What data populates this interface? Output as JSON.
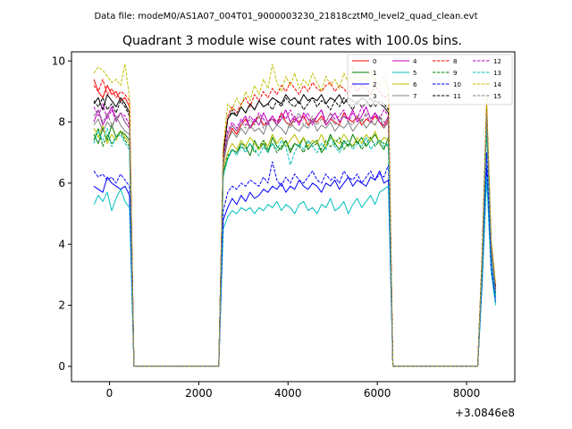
{
  "chart_data": {
    "type": "line",
    "suptitle": "Data file: modeM0/AS1A07_004T01_9000003230_21818cztM0_level2_quad_clean.evt",
    "title": "Quadrant 3 module wise count rates with 100.0s bins.",
    "xlabel": "",
    "ylabel": "",
    "offset_text": "+3.0846e8",
    "xlim": [
      -850,
      9080
    ],
    "ylim": [
      -0.5,
      10.3
    ],
    "xticks": [
      0,
      2000,
      4000,
      6000,
      8000
    ],
    "xtick_labels": [
      "0",
      "2000",
      "4000",
      "6000",
      "8000"
    ],
    "yticks": [
      0,
      2,
      4,
      6,
      8,
      10
    ],
    "ytick_labels": [
      "0",
      "2",
      "4",
      "6",
      "8",
      "10"
    ],
    "grid": false,
    "legend_position": "top-right",
    "segments": [
      {
        "x_start": -350,
        "x_end": 450
      },
      {
        "x_start": 2550,
        "x_end": 6250
      },
      {
        "x_start": 8350,
        "x_end": 8650
      }
    ],
    "series": [
      {
        "name": "0",
        "color": "#ff0000",
        "style": "solid",
        "seg_values": [
          [
            9.4,
            9.0,
            8.8,
            9.2,
            8.9,
            9.0,
            8.7,
            8.8,
            8.5
          ],
          [
            6.8,
            7.4,
            7.8,
            7.6,
            7.9,
            8.1,
            7.8,
            8.0,
            8.2,
            7.9,
            8.0,
            8.1,
            7.9,
            8.3,
            8.0,
            7.9,
            8.1,
            8.0,
            8.2,
            7.9,
            8.1,
            8.0,
            8.2,
            7.9,
            8.1,
            8.0,
            7.9,
            8.3,
            8.1,
            8.0,
            8.2,
            7.9,
            8.1,
            8.0,
            8.2,
            8.0,
            7.8,
            8.1
          ],
          [
            3.5,
            8.3,
            4.0,
            2.6
          ]
        ]
      },
      {
        "name": "1",
        "color": "#008000",
        "style": "solid",
        "seg_values": [
          [
            7.6,
            7.3,
            7.8,
            7.4,
            7.9,
            7.5,
            7.7,
            7.6,
            7.4
          ],
          [
            6.4,
            6.8,
            7.1,
            7.0,
            7.3,
            7.2,
            6.9,
            7.4,
            7.1,
            7.3,
            7.0,
            7.5,
            7.2,
            7.1,
            7.4,
            7.0,
            7.3,
            7.2,
            7.5,
            7.1,
            7.3,
            7.4,
            7.0,
            7.2,
            7.6,
            7.3,
            7.1,
            7.4,
            7.2,
            7.6,
            7.3,
            7.5,
            7.2,
            7.4,
            7.6,
            7.3,
            7.1,
            7.5
          ],
          [
            3.2,
            8.0,
            3.8,
            2.4
          ]
        ]
      },
      {
        "name": "2",
        "color": "#0000ff",
        "style": "solid",
        "seg_values": [
          [
            5.9,
            5.8,
            5.7,
            6.2,
            6.0,
            5.9,
            5.8,
            5.9,
            5.6
          ],
          [
            4.8,
            5.2,
            5.5,
            5.3,
            5.6,
            5.4,
            5.7,
            5.5,
            5.6,
            5.8,
            5.7,
            5.9,
            5.8,
            6.0,
            5.7,
            5.9,
            5.8,
            6.1,
            5.9,
            5.8,
            6.0,
            5.9,
            5.7,
            6.0,
            5.9,
            6.1,
            5.8,
            6.0,
            6.2,
            5.9,
            6.1,
            6.0,
            5.9,
            6.2,
            6.1,
            6.4,
            6.0,
            6.1
          ],
          [
            2.8,
            6.5,
            3.2,
            2.1
          ]
        ]
      },
      {
        "name": "3",
        "color": "#000000",
        "style": "solid",
        "seg_values": [
          [
            8.6,
            8.8,
            8.4,
            8.9,
            8.7,
            8.5,
            8.8,
            8.6,
            8.3
          ],
          [
            6.9,
            8.1,
            8.3,
            8.2,
            8.5,
            8.3,
            8.6,
            8.4,
            8.7,
            8.5,
            8.6,
            8.8,
            8.7,
            8.6,
            8.9,
            8.7,
            8.8,
            8.6,
            8.9,
            8.7,
            8.8,
            8.7,
            8.9,
            8.6,
            8.8,
            8.7,
            8.9,
            8.6,
            8.8,
            8.7,
            8.6,
            8.8,
            8.7,
            8.5,
            8.7,
            8.6,
            8.5,
            8.3
          ],
          [
            3.6,
            8.5,
            4.1,
            2.6
          ]
        ]
      },
      {
        "name": "4",
        "color": "#c000c0",
        "style": "solid",
        "seg_values": [
          [
            8.0,
            8.4,
            7.9,
            8.2,
            8.5,
            8.1,
            8.3,
            8.0,
            7.8
          ],
          [
            6.7,
            7.6,
            7.9,
            7.7,
            8.0,
            8.2,
            7.8,
            8.1,
            7.9,
            8.3,
            8.0,
            8.2,
            7.9,
            8.1,
            8.4,
            8.0,
            8.2,
            7.9,
            8.3,
            8.1,
            8.0,
            8.2,
            8.4,
            7.9,
            8.1,
            8.3,
            8.0,
            8.2,
            8.1,
            8.4,
            8.0,
            8.2,
            8.5,
            8.1,
            8.3,
            8.0,
            7.9,
            8.2
          ],
          [
            3.4,
            8.2,
            3.9,
            2.5
          ]
        ]
      },
      {
        "name": "5",
        "color": "#00bfbf",
        "style": "solid",
        "seg_values": [
          [
            5.3,
            5.6,
            5.4,
            5.7,
            5.1,
            5.5,
            5.8,
            5.4,
            5.2
          ],
          [
            4.5,
            4.9,
            5.1,
            5.0,
            5.2,
            5.1,
            5.2,
            5.0,
            5.2,
            5.1,
            5.3,
            5.2,
            5.4,
            5.1,
            5.3,
            5.2,
            5.0,
            5.3,
            5.4,
            5.1,
            5.2,
            5.0,
            5.3,
            5.2,
            5.5,
            5.1,
            5.2,
            5.4,
            5.0,
            5.3,
            5.5,
            5.2,
            5.4,
            5.6,
            5.3,
            5.7,
            5.8,
            5.9
          ],
          [
            2.7,
            6.2,
            3.1,
            2.0
          ]
        ]
      },
      {
        "name": "6",
        "color": "#bfbf00",
        "style": "solid",
        "seg_values": [
          [
            7.8,
            7.5,
            7.9,
            7.3,
            7.6,
            7.4,
            7.7,
            7.5,
            7.3
          ],
          [
            6.5,
            7.0,
            7.3,
            7.1,
            7.4,
            7.2,
            7.5,
            7.3,
            7.1,
            7.4,
            7.2,
            7.6,
            7.3,
            7.5,
            7.2,
            7.4,
            7.6,
            7.3,
            7.5,
            7.2,
            7.4,
            7.3,
            7.6,
            7.2,
            7.5,
            7.4,
            7.3,
            7.6,
            7.4,
            7.2,
            7.5,
            7.3,
            7.6,
            7.4,
            7.7,
            7.3,
            7.5,
            7.4
          ],
          [
            3.3,
            8.1,
            3.9,
            2.5
          ]
        ]
      },
      {
        "name": "7",
        "color": "#808080",
        "style": "solid",
        "seg_values": [
          [
            7.9,
            8.1,
            7.7,
            8.0,
            7.8,
            8.2,
            7.9,
            7.7,
            7.6
          ],
          [
            6.6,
            7.4,
            7.7,
            7.5,
            7.8,
            7.6,
            7.9,
            7.7,
            7.8,
            7.6,
            8.0,
            7.7,
            7.9,
            7.8,
            7.6,
            8.0,
            7.8,
            7.7,
            7.9,
            7.8,
            8.1,
            7.7,
            7.9,
            7.8,
            8.0,
            7.7,
            7.9,
            7.8,
            8.0,
            7.7,
            7.9,
            8.1,
            7.8,
            8.0,
            7.9,
            8.2,
            7.8,
            8.0
          ],
          [
            3.4,
            8.2,
            3.9,
            2.5
          ]
        ]
      },
      {
        "name": "8",
        "color": "#ff0000",
        "style": "dashed",
        "seg_values": [
          [
            9.2,
            9.0,
            9.4,
            8.9,
            9.1,
            8.8,
            9.0,
            8.9,
            8.7
          ],
          [
            7.0,
            8.2,
            8.5,
            8.3,
            8.6,
            8.8,
            8.5,
            8.9,
            8.7,
            9.0,
            8.8,
            9.1,
            8.9,
            9.2,
            9.0,
            9.3,
            9.1,
            8.9,
            9.2,
            9.0,
            9.3,
            9.1,
            9.0,
            9.2,
            9.3,
            9.0,
            9.2,
            9.1,
            8.9,
            9.3,
            9.0,
            9.2,
            9.1,
            8.9,
            9.2,
            9.0,
            8.8,
            8.9
          ],
          [
            3.7,
            8.6,
            4.1,
            2.6
          ]
        ]
      },
      {
        "name": "9",
        "color": "#008000",
        "style": "dashed",
        "seg_values": [
          [
            7.4,
            7.8,
            7.2,
            7.6,
            7.3,
            7.5,
            7.7,
            7.4,
            7.2
          ],
          [
            6.3,
            6.9,
            7.1,
            7.0,
            7.2,
            7.1,
            7.3,
            7.0,
            7.2,
            7.4,
            7.1,
            7.3,
            7.0,
            7.2,
            7.4,
            7.1,
            7.3,
            7.2,
            7.0,
            7.4,
            7.2,
            7.3,
            7.1,
            7.4,
            7.2,
            7.3,
            7.5,
            7.1,
            7.3,
            7.2,
            7.4,
            7.1,
            7.3,
            7.5,
            7.2,
            7.4,
            7.3,
            7.2
          ],
          [
            3.2,
            7.9,
            3.7,
            2.3
          ]
        ]
      },
      {
        "name": "10",
        "color": "#0000ff",
        "style": "dashed",
        "seg_values": [
          [
            6.4,
            6.2,
            6.3,
            6.1,
            6.2,
            6.0,
            6.3,
            6.1,
            5.9
          ],
          [
            5.1,
            5.7,
            5.9,
            5.8,
            6.0,
            5.9,
            6.1,
            6.0,
            5.9,
            6.2,
            6.0,
            6.7,
            6.1,
            5.9,
            6.2,
            6.0,
            6.3,
            6.1,
            6.0,
            6.2,
            6.4,
            6.1,
            6.0,
            6.3,
            6.1,
            6.2,
            6.0,
            6.4,
            6.2,
            6.1,
            6.3,
            6.0,
            6.2,
            6.4,
            6.1,
            6.3,
            6.2,
            6.6
          ],
          [
            2.9,
            7.0,
            3.3,
            2.2
          ]
        ]
      },
      {
        "name": "11",
        "color": "#000000",
        "style": "dashed",
        "seg_values": [
          [
            8.7,
            8.5,
            8.8,
            8.4,
            8.6,
            8.3,
            8.7,
            8.5,
            8.2
          ],
          [
            7.0,
            8.1,
            8.4,
            8.2,
            8.5,
            8.3,
            8.6,
            8.4,
            8.7,
            8.5,
            8.6,
            8.4,
            8.7,
            8.5,
            8.8,
            8.6,
            8.5,
            8.7,
            8.4,
            8.6,
            8.8,
            8.5,
            8.7,
            8.6,
            8.4,
            8.7,
            8.5,
            8.8,
            8.6,
            8.4,
            8.7,
            8.5,
            8.6,
            8.8,
            8.5,
            8.7,
            8.6,
            8.4
          ],
          [
            3.6,
            8.4,
            4.0,
            2.6
          ]
        ]
      },
      {
        "name": "12",
        "color": "#c000c0",
        "style": "dashed",
        "seg_values": [
          [
            8.5,
            8.2,
            8.6,
            8.1,
            8.4,
            8.0,
            8.3,
            8.2,
            7.9
          ],
          [
            6.8,
            7.7,
            8.0,
            7.8,
            8.1,
            7.9,
            8.2,
            8.0,
            8.3,
            8.1,
            7.9,
            8.2,
            8.0,
            8.3,
            8.1,
            8.4,
            8.0,
            8.2,
            8.1,
            8.3,
            7.9,
            8.2,
            8.4,
            8.0,
            8.3,
            8.1,
            8.2,
            8.4,
            8.0,
            8.3,
            8.1,
            8.5,
            8.2,
            8.0,
            8.3,
            8.1,
            8.4,
            8.2
          ],
          [
            3.5,
            8.3,
            4.0,
            2.5
          ]
        ]
      },
      {
        "name": "13",
        "color": "#00bfbf",
        "style": "dashed",
        "seg_values": [
          [
            7.3,
            7.7,
            7.4,
            7.8,
            7.2,
            7.5,
            7.6,
            7.3,
            7.1
          ],
          [
            6.2,
            6.8,
            7.1,
            6.9,
            7.2,
            7.0,
            7.3,
            7.1,
            6.9,
            7.2,
            7.0,
            7.3,
            7.1,
            7.4,
            7.2,
            6.6,
            7.0,
            7.3,
            7.1,
            7.4,
            7.2,
            7.0,
            7.3,
            7.1,
            7.5,
            7.2,
            7.0,
            7.3,
            7.4,
            7.1,
            7.3,
            7.2,
            7.5,
            7.1,
            7.3,
            7.4,
            7.2,
            7.3
          ],
          [
            3.1,
            7.8,
            3.7,
            2.3
          ]
        ]
      },
      {
        "name": "14",
        "color": "#bfbf00",
        "style": "dashed",
        "seg_values": [
          [
            9.6,
            9.8,
            9.7,
            9.5,
            9.3,
            9.4,
            9.2,
            9.9,
            8.8
          ],
          [
            7.2,
            8.6,
            8.4,
            8.8,
            8.5,
            9.0,
            8.7,
            9.2,
            8.9,
            9.4,
            9.1,
            9.9,
            9.3,
            9.0,
            9.5,
            9.2,
            9.6,
            9.1,
            9.4,
            9.2,
            9.6,
            9.3,
            9.0,
            9.5,
            9.2,
            9.4,
            9.1,
            9.6,
            9.3,
            9.8,
            9.2,
            9.5,
            9.3,
            9.7,
            9.4,
            9.2,
            9.5,
            9.1
          ],
          [
            3.8,
            8.8,
            4.2,
            2.7
          ]
        ]
      },
      {
        "name": "15",
        "color": "#808080",
        "style": "dashed",
        "seg_values": [
          [
            8.2,
            8.4,
            8.0,
            8.3,
            7.9,
            8.1,
            8.3,
            8.0,
            7.8
          ],
          [
            6.7,
            7.6,
            7.9,
            7.7,
            8.0,
            7.8,
            8.1,
            7.9,
            8.2,
            7.8,
            8.0,
            8.1,
            7.9,
            8.2,
            8.0,
            7.8,
            8.1,
            8.3,
            7.9,
            8.0,
            8.2,
            7.9,
            8.1,
            8.0,
            8.3,
            7.9,
            8.1,
            8.2,
            8.0,
            7.9,
            8.2,
            8.0,
            8.3,
            8.1,
            7.9,
            8.2,
            8.0,
            8.1
          ],
          [
            3.4,
            8.2,
            3.9,
            2.5
          ]
        ]
      }
    ]
  }
}
